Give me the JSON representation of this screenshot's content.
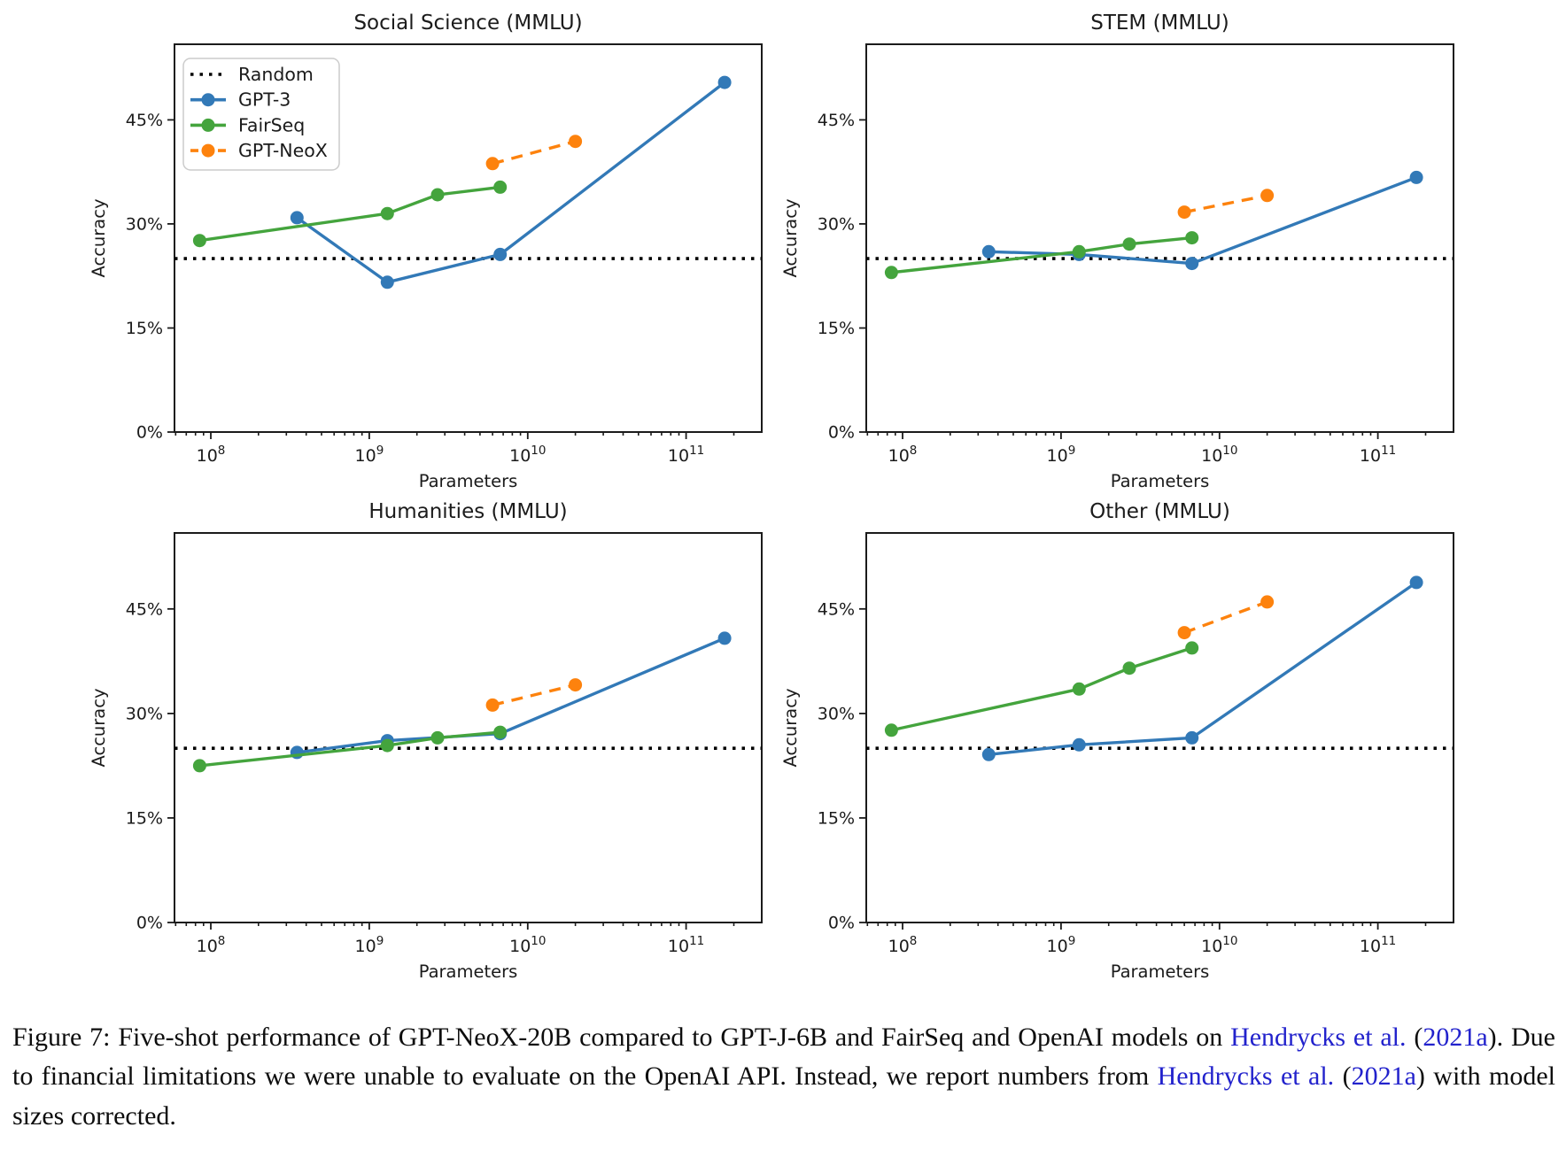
{
  "colors": {
    "gpt3": "#3279b7",
    "fairseq": "#44a43d",
    "gptneox": "#fd820d",
    "random": "#000000",
    "axis": "#1b1b1b",
    "legend_border": "#cccccc",
    "citation_link": "#2222cc",
    "caption_text": "#0d0d0d"
  },
  "legend": {
    "shown_on_subplot": 0,
    "entries": [
      {
        "label": "Random",
        "series": "random",
        "line": "dotted",
        "marker": false
      },
      {
        "label": "GPT-3",
        "series": "gpt3",
        "line": "solid",
        "marker": true
      },
      {
        "label": "FairSeq",
        "series": "fairseq",
        "line": "solid",
        "marker": true
      },
      {
        "label": "GPT-NeoX",
        "series": "gptneox",
        "line": "dashed",
        "marker": true
      }
    ]
  },
  "chart_data": [
    {
      "type": "line",
      "title": "Social Science (MMLU)",
      "xlabel": "Parameters",
      "ylabel": "Accuracy",
      "x_scale": "log",
      "xlim": [
        59000000.0,
        300000000000.0
      ],
      "ylim": [
        0,
        55.9
      ],
      "x_ticks": [
        100000000.0,
        1000000000.0,
        10000000000.0,
        100000000000.0
      ],
      "y_ticks": [
        {
          "v": 0,
          "label": "0%"
        },
        {
          "v": 15,
          "label": "15%"
        },
        {
          "v": 30,
          "label": "30%"
        },
        {
          "v": 45,
          "label": "45%"
        }
      ],
      "grid": false,
      "random_baseline": 25,
      "series": [
        {
          "name": "GPT-3",
          "color_key": "gpt3",
          "dash": null,
          "params": [
            350000000.0,
            1300000000.0,
            6700000000.0,
            175000000000.0
          ],
          "accuracy": [
            30.9,
            21.6,
            25.6,
            50.4
          ]
        },
        {
          "name": "FairSeq",
          "color_key": "fairseq",
          "dash": null,
          "params": [
            85000000.0,
            1300000000.0,
            2700000000.0,
            6700000000.0
          ],
          "accuracy": [
            27.6,
            31.5,
            34.2,
            35.3
          ]
        },
        {
          "name": "GPT-NeoX",
          "color_key": "gptneox",
          "dash": "13 9",
          "params": [
            6000000000.0,
            20000000000.0
          ],
          "accuracy": [
            38.7,
            41.9
          ]
        }
      ]
    },
    {
      "type": "line",
      "title": "STEM (MMLU)",
      "xlabel": "Parameters",
      "ylabel": "Accuracy",
      "x_scale": "log",
      "xlim": [
        59000000.0,
        300000000000.0
      ],
      "ylim": [
        0,
        55.9
      ],
      "x_ticks": [
        100000000.0,
        1000000000.0,
        10000000000.0,
        100000000000.0
      ],
      "y_ticks": [
        {
          "v": 0,
          "label": "0%"
        },
        {
          "v": 15,
          "label": "15%"
        },
        {
          "v": 30,
          "label": "30%"
        },
        {
          "v": 45,
          "label": "45%"
        }
      ],
      "grid": false,
      "random_baseline": 25,
      "series": [
        {
          "name": "GPT-3",
          "color_key": "gpt3",
          "dash": null,
          "params": [
            350000000.0,
            1300000000.0,
            6700000000.0,
            175000000000.0
          ],
          "accuracy": [
            26.0,
            25.6,
            24.3,
            36.7
          ]
        },
        {
          "name": "FairSeq",
          "color_key": "fairseq",
          "dash": null,
          "params": [
            85000000.0,
            1300000000.0,
            2700000000.0,
            6700000000.0
          ],
          "accuracy": [
            23.0,
            26.0,
            27.1,
            28.0
          ]
        },
        {
          "name": "GPT-NeoX",
          "color_key": "gptneox",
          "dash": "13 9",
          "params": [
            6000000000.0,
            20000000000.0
          ],
          "accuracy": [
            31.7,
            34.1
          ]
        }
      ]
    },
    {
      "type": "line",
      "title": "Humanities (MMLU)",
      "xlabel": "Parameters",
      "ylabel": "Accuracy",
      "x_scale": "log",
      "xlim": [
        59000000.0,
        300000000000.0
      ],
      "ylim": [
        0,
        55.9
      ],
      "x_ticks": [
        100000000.0,
        1000000000.0,
        10000000000.0,
        100000000000.0
      ],
      "y_ticks": [
        {
          "v": 0,
          "label": "0%"
        },
        {
          "v": 15,
          "label": "15%"
        },
        {
          "v": 30,
          "label": "30%"
        },
        {
          "v": 45,
          "label": "45%"
        }
      ],
      "grid": false,
      "random_baseline": 25,
      "series": [
        {
          "name": "GPT-3",
          "color_key": "gpt3",
          "dash": null,
          "params": [
            350000000.0,
            1300000000.0,
            6700000000.0,
            175000000000.0
          ],
          "accuracy": [
            24.4,
            26.1,
            27.1,
            40.8
          ]
        },
        {
          "name": "FairSeq",
          "color_key": "fairseq",
          "dash": null,
          "params": [
            85000000.0,
            1300000000.0,
            2700000000.0,
            6700000000.0
          ],
          "accuracy": [
            22.5,
            25.4,
            26.5,
            27.3
          ]
        },
        {
          "name": "GPT-NeoX",
          "color_key": "gptneox",
          "dash": "13 9",
          "params": [
            6000000000.0,
            20000000000.0
          ],
          "accuracy": [
            31.2,
            34.1
          ]
        }
      ]
    },
    {
      "type": "line",
      "title": "Other (MMLU)",
      "xlabel": "Parameters",
      "ylabel": "Accuracy",
      "x_scale": "log",
      "xlim": [
        59000000.0,
        300000000000.0
      ],
      "ylim": [
        0,
        55.9
      ],
      "x_ticks": [
        100000000.0,
        1000000000.0,
        10000000000.0,
        100000000000.0
      ],
      "y_ticks": [
        {
          "v": 0,
          "label": "0%"
        },
        {
          "v": 15,
          "label": "15%"
        },
        {
          "v": 30,
          "label": "30%"
        },
        {
          "v": 45,
          "label": "45%"
        }
      ],
      "grid": false,
      "random_baseline": 25,
      "series": [
        {
          "name": "GPT-3",
          "color_key": "gpt3",
          "dash": null,
          "params": [
            350000000.0,
            1300000000.0,
            6700000000.0,
            175000000000.0
          ],
          "accuracy": [
            24.1,
            25.5,
            26.5,
            48.8
          ]
        },
        {
          "name": "FairSeq",
          "color_key": "fairseq",
          "dash": null,
          "params": [
            85000000.0,
            1300000000.0,
            2700000000.0,
            6700000000.0
          ],
          "accuracy": [
            27.6,
            33.5,
            36.5,
            39.4
          ]
        },
        {
          "name": "GPT-NeoX",
          "color_key": "gptneox",
          "dash": "13 9",
          "params": [
            6000000000.0,
            20000000000.0
          ],
          "accuracy": [
            41.6,
            46.0
          ]
        }
      ]
    }
  ],
  "caption": {
    "segments": [
      {
        "text": "Figure 7: Five-shot performance of GPT-NeoX-20B compared to GPT-J-6B and FairSeq and OpenAI models on ",
        "link": false
      },
      {
        "text": "Hendrycks et al.",
        "link": true
      },
      {
        "text": " (",
        "link": false
      },
      {
        "text": "2021a",
        "link": true
      },
      {
        "text": "). Due to financial limitations we were unable to evaluate on the OpenAI API. Instead, we report numbers from ",
        "link": false
      },
      {
        "text": "Hendrycks et al.",
        "link": true
      },
      {
        "text": " (",
        "link": false
      },
      {
        "text": "2021a",
        "link": true
      },
      {
        "text": ") with model sizes corrected.",
        "link": false
      }
    ]
  }
}
